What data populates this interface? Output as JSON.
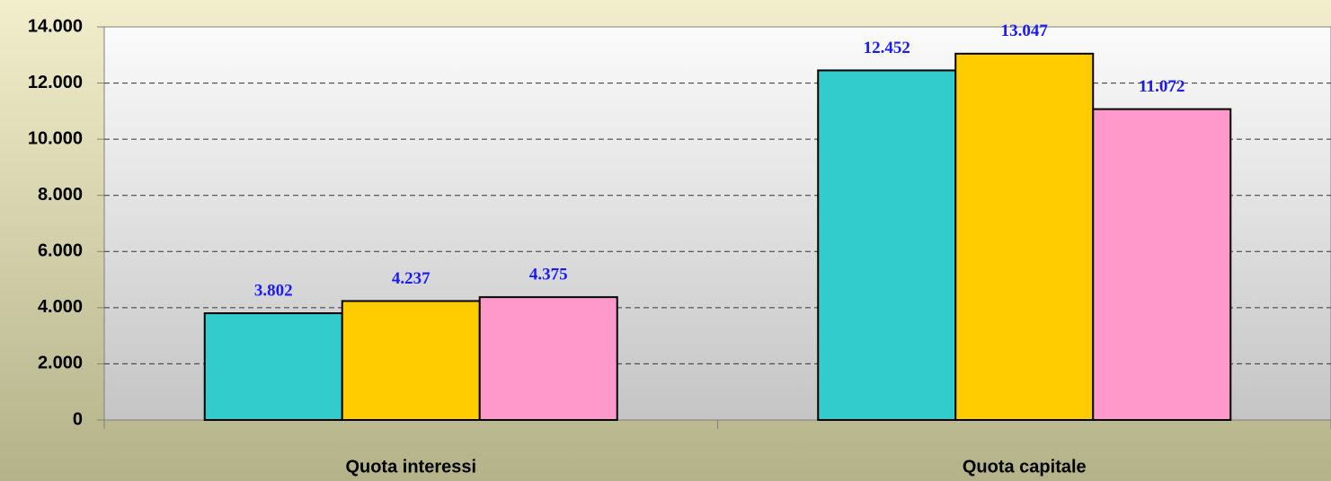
{
  "chart_data": {
    "type": "bar",
    "categories": [
      "Quota interessi",
      "Quota capitale"
    ],
    "series": [
      {
        "color": "#33cccc",
        "values": [
          3802,
          12452
        ],
        "value_labels": [
          "3.802",
          "12.452"
        ]
      },
      {
        "color": "#ffcc00",
        "values": [
          4237,
          13047
        ],
        "value_labels": [
          "4.237",
          "13.047"
        ]
      },
      {
        "color": "#ff99cc",
        "values": [
          4375,
          11072
        ],
        "value_labels": [
          "4.375",
          "11.072"
        ]
      }
    ],
    "ylim": [
      0,
      14000
    ],
    "yticks": [
      0,
      {
        "value": 2000,
        "label": "2.000"
      },
      {
        "value": 4000,
        "label": "4.000"
      },
      {
        "value": 6000,
        "label": "6.000"
      },
      {
        "value": 8000,
        "label": "8.000"
      },
      {
        "value": 10000,
        "label": "10.000"
      },
      {
        "value": 12000,
        "label": "12.000"
      },
      {
        "value": 14000,
        "label": "14.000"
      }
    ],
    "grid": true
  }
}
